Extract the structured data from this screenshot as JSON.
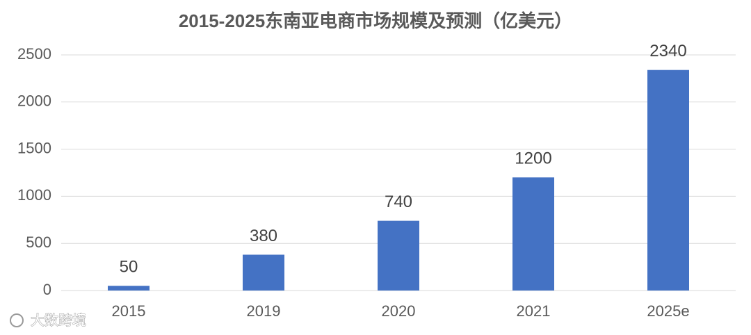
{
  "chart_data": {
    "type": "bar",
    "title": "2015-2025东南亚电商市场规模及预测（亿美元）",
    "categories": [
      "2015",
      "2019",
      "2020",
      "2021",
      "2025e"
    ],
    "values": [
      50,
      380,
      740,
      1200,
      2340
    ],
    "color": "#4472c4",
    "ylim": [
      0,
      2500
    ],
    "yticks": [
      0,
      500,
      1000,
      1500,
      2000,
      2500
    ],
    "grid": true
  },
  "watermark": "大数跨境"
}
